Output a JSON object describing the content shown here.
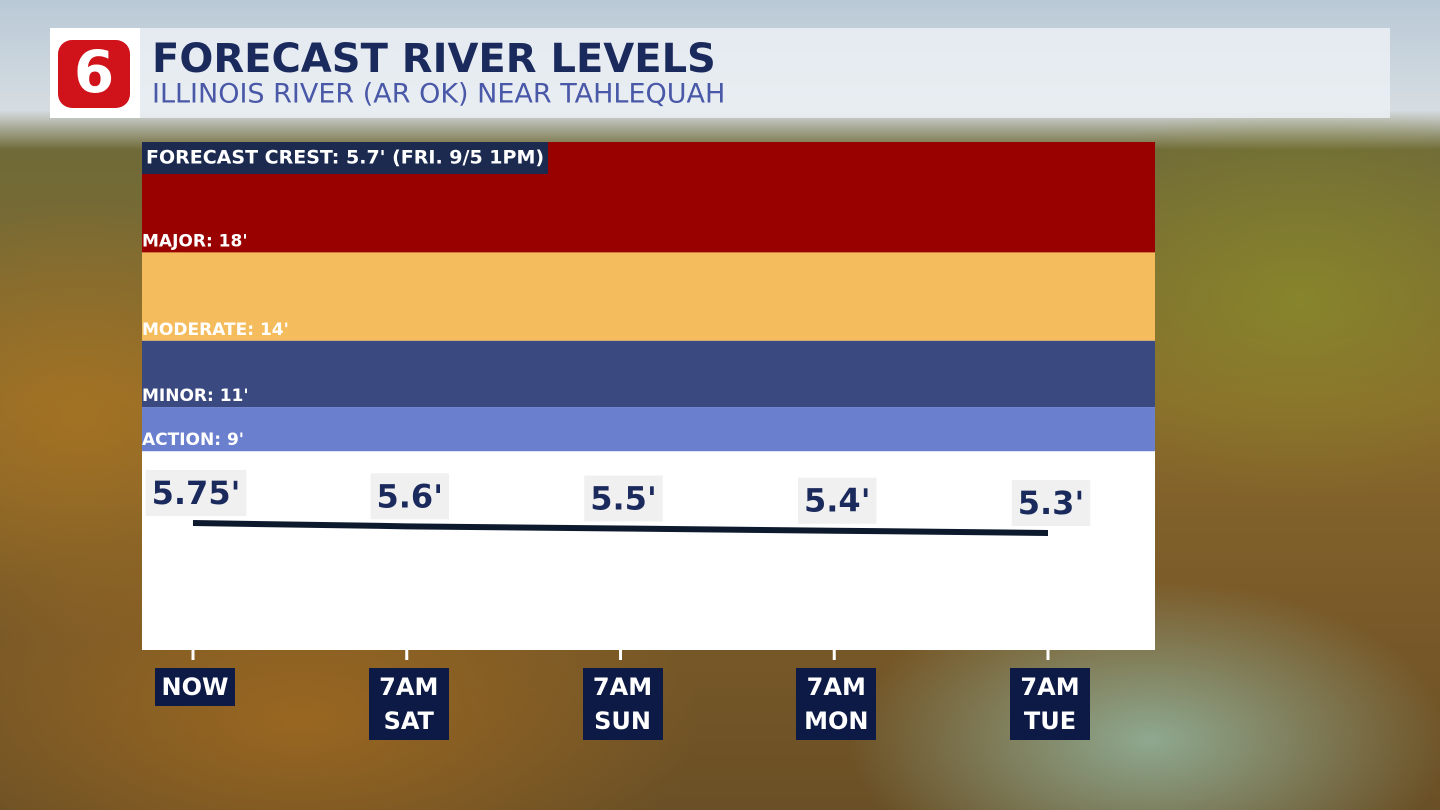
{
  "chart_data": {
    "type": "line",
    "logo": "6",
    "title": "FORECAST RIVER LEVELS",
    "subtitle": "ILLINOIS RIVER (AR OK) NEAR TAHLEQUAH",
    "annotation": "FORECAST CREST: 5.7' (FRI. 9/5 1PM)",
    "categories": [
      "NOW",
      "7AM SAT",
      "7AM SUN",
      "7AM MON",
      "7AM TUE"
    ],
    "values": [
      5.75,
      5.6,
      5.5,
      5.4,
      5.3
    ],
    "value_labels": [
      "5.75'",
      "5.6'",
      "5.5'",
      "5.4'",
      "5.3'"
    ],
    "color": "#0d1a2e",
    "ylim": [
      0,
      23
    ],
    "thresholds": [
      {
        "label": "MAJOR: 18'",
        "value": 18,
        "color": "#990000"
      },
      {
        "label": "MODERATE: 14'",
        "value": 14,
        "color": "#f5bc5e"
      },
      {
        "label": "MINOR: 11'",
        "value": 11,
        "color": "#3a4a80"
      },
      {
        "label": "ACTION: 9'",
        "value": 9,
        "color": "#6b7fcf"
      }
    ]
  }
}
